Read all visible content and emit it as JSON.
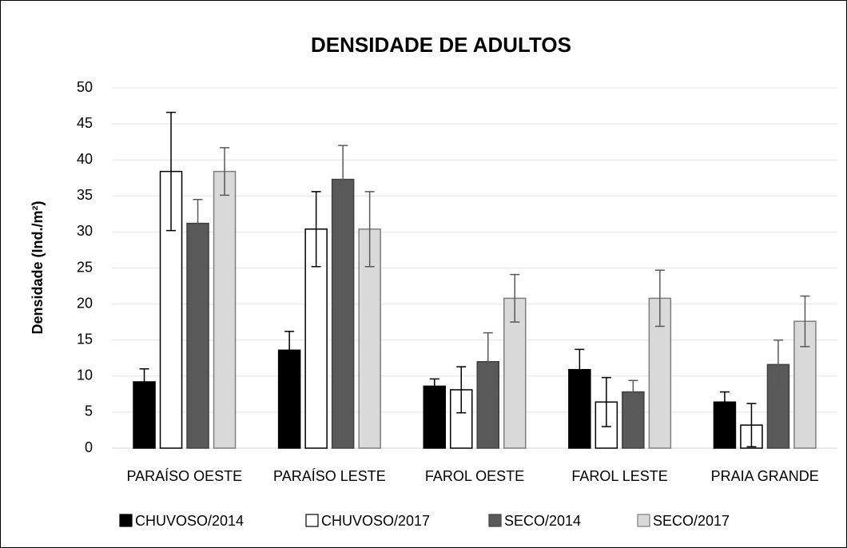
{
  "chart_data": {
    "type": "bar",
    "title": "DENSIDADE DE ADULTOS",
    "y_label": "Densidade (Ind./m²)",
    "categories": [
      "PARAÍSO OESTE",
      "PARAÍSO LESTE",
      "FAROL OESTE",
      "FAROL LESTE",
      "PRAIA GRANDE"
    ],
    "series": [
      {
        "name": "CHUVOSO/2014",
        "color": "#000000",
        "edge": "#000000",
        "error_color": "#000000",
        "values": [
          9.2,
          13.6,
          8.6,
          10.9,
          6.4
        ],
        "errors": [
          1.8,
          2.6,
          1.0,
          2.8,
          1.4
        ]
      },
      {
        "name": "CHUVOSO/2017",
        "color": "#ffffff",
        "edge": "#000000",
        "error_color": "#000000",
        "values": [
          38.4,
          30.4,
          8.1,
          6.4,
          3.2
        ],
        "errors": [
          8.2,
          5.2,
          3.2,
          3.4,
          3.0
        ]
      },
      {
        "name": "SECO/2014",
        "color": "#595959",
        "edge": "#404040",
        "error_color": "#595959",
        "values": [
          31.2,
          37.3,
          12.0,
          7.8,
          11.6
        ],
        "errors": [
          3.3,
          4.7,
          4.0,
          1.6,
          3.4
        ]
      },
      {
        "name": "SECO/2017",
        "color": "#d9d9d9",
        "edge": "#7f7f7f",
        "error_color": "#595959",
        "values": [
          38.4,
          30.4,
          20.8,
          20.8,
          17.6
        ],
        "errors": [
          3.3,
          5.2,
          3.3,
          3.9,
          3.5
        ]
      }
    ],
    "ylim": [
      0,
      50
    ],
    "yticks": [
      0,
      5,
      10,
      15,
      20,
      25,
      30,
      35,
      40,
      45,
      50
    ],
    "grid": true,
    "legend": "bottom"
  }
}
